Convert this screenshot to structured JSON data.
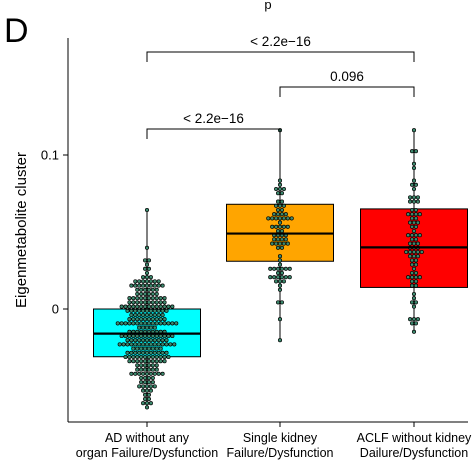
{
  "panel_letter": "D",
  "title_fragment": "p",
  "chart_data": {
    "type": "box",
    "overlay": "dotplot",
    "ylabel": "Eigenmetabolite cluster",
    "xlabel": "",
    "ylim": [
      -0.068,
      0.175
    ],
    "yticks": [
      0,
      0.1
    ],
    "ytick_labels": [
      "0",
      "0.1"
    ],
    "categories": [
      [
        "AD without any",
        "organ Failure/Dysfunction"
      ],
      [
        "Single kidney",
        "Failure/Dysfunction"
      ],
      [
        "ACLF without kidney",
        "Dailure/Dysfunction"
      ]
    ],
    "colors": [
      "#00ffff",
      "#ffa500",
      "#ff0000"
    ],
    "boxes": [
      {
        "min": -0.063,
        "q1": -0.031,
        "median": -0.016,
        "q3": 0.0,
        "max": 0.065
      },
      {
        "min": -0.019,
        "q1": 0.031,
        "median": 0.049,
        "q3": 0.068,
        "max": 0.116
      },
      {
        "min": -0.014,
        "q1": 0.014,
        "median": 0.04,
        "q3": 0.065,
        "max": 0.116
      }
    ],
    "comparisons": [
      {
        "groups": [
          1,
          2
        ],
        "label": "< 2.2e−16"
      },
      {
        "groups": [
          2,
          3
        ],
        "label": "0.096"
      },
      {
        "groups": [
          1,
          3
        ],
        "label": "< 2.2e−16"
      }
    ]
  }
}
